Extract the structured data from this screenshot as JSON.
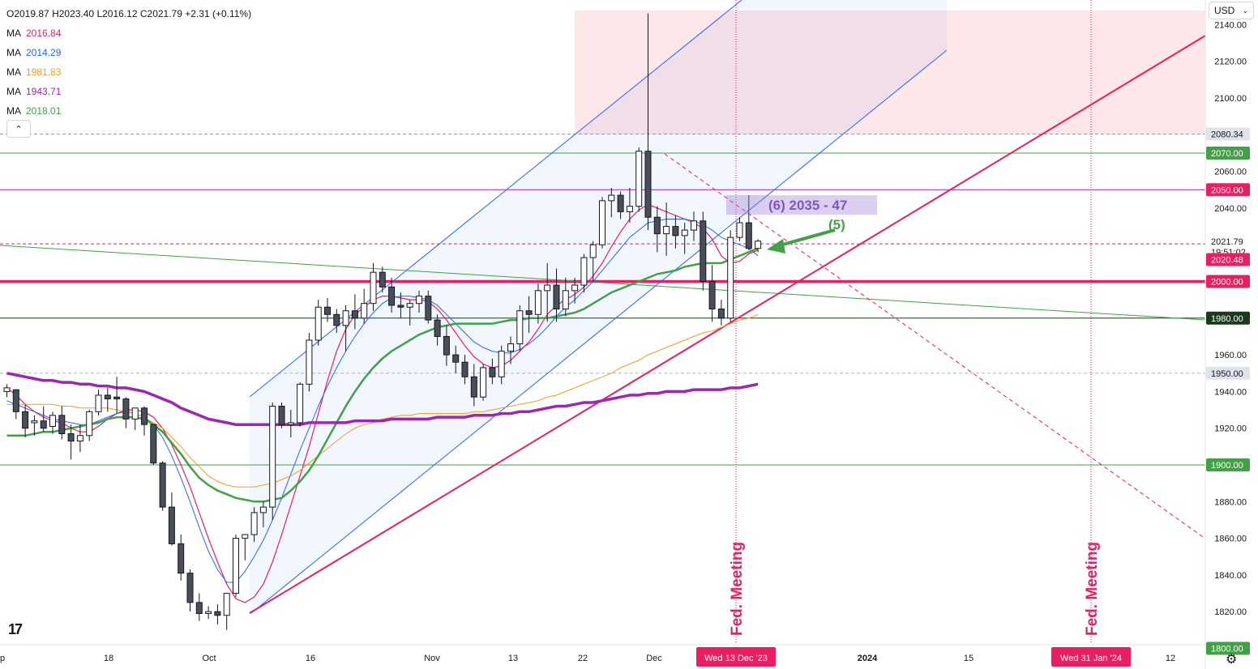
{
  "ohlc": {
    "o": "O2019.87",
    "h": "H2023.40",
    "l": "L2016.12",
    "c": "C2021.79",
    "chg": "+2.31 (+0.11%)"
  },
  "ma_label": "MA",
  "ma": [
    {
      "value": "2016.84",
      "color": "#e91e63"
    },
    {
      "value": "2014.29",
      "color": "#2962ff"
    },
    {
      "value": "1981.83",
      "color": "#f59c1a"
    },
    {
      "value": "1943.71",
      "color": "#9c27b0"
    },
    {
      "value": "2018.01",
      "color": "#43a047"
    }
  ],
  "currency": "USD",
  "settings_icon": "gear-icon",
  "collapse_icon": "chevron-up-icon",
  "chart_data": {
    "type": "candlestick",
    "yaxis_ticks": [
      "2140.00",
      "2120.00",
      "2100.00",
      "2080.00",
      "2060.00",
      "2040.00",
      "2020.00",
      "2000.00",
      "1980.00",
      "1960.00",
      "1940.00",
      "1920.00",
      "1900.00",
      "1880.00",
      "1860.00",
      "1840.00",
      "1820.00",
      "1800.00"
    ],
    "xaxis_ticks": [
      "p",
      "18",
      "Oct",
      "16",
      "Nov",
      "13",
      "22",
      "Dec",
      "2024",
      "15",
      "12"
    ],
    "x_highlight_labels": [
      "Wed 13 Dec '23",
      "Wed 31 Jan '24"
    ],
    "price_badges": [
      {
        "text": "2080.34",
        "price": 2080.34,
        "bg": "#e0e3eb",
        "fg": "#131722"
      },
      {
        "text": "2070.00",
        "price": 2070,
        "bg": "#43a047",
        "fg": "#ffffff"
      },
      {
        "text": "2050.00",
        "price": 2050,
        "bg": "#e91e63",
        "fg": "#ffffff"
      },
      {
        "text": "2021.79",
        "price": 2021.79,
        "bg": "#ffffff",
        "fg": "#131722"
      },
      {
        "text": "19:51:02",
        "price": 2016.2,
        "bg": "#ffffff",
        "fg": "#131722"
      },
      {
        "text": "2020.48",
        "price": 2011.9,
        "bg": "#e91e63",
        "fg": "#ffffff"
      },
      {
        "text": "2000.00",
        "price": 2000,
        "bg": "#e91e63",
        "fg": "#ffffff"
      },
      {
        "text": "1980.00",
        "price": 1980,
        "bg": "#1b3a1b",
        "fg": "#ffffff"
      },
      {
        "text": "1950.00",
        "price": 1950,
        "bg": "#e0e3eb",
        "fg": "#131722"
      },
      {
        "text": "1900.00",
        "price": 1900,
        "bg": "#43a047",
        "fg": "#ffffff"
      },
      {
        "text": "1800.00",
        "price": 1800,
        "bg": "#43a047",
        "fg": "#ffffff"
      }
    ],
    "level_labels": [
      {
        "text": "2081",
        "price": 2081,
        "color": "#9598a1"
      },
      {
        "text": "2070",
        "price": 2070,
        "color": "#43a047"
      },
      {
        "text": "2050",
        "price": 2050,
        "color": "#e91e63"
      },
      {
        "text": "2020",
        "price": 2020,
        "color": "#e91e63"
      },
      {
        "text": "2000",
        "price": 2000,
        "color": "#e91e63"
      },
      {
        "text": "1980",
        "price": 1980,
        "color": "#9598a1"
      },
      {
        "text": "1900",
        "price": 1900,
        "color": "#43a047"
      },
      {
        "text": "1800",
        "price": 1800,
        "color": "#43a047"
      }
    ],
    "annotations": {
      "wave6": "(6) 2035 - 47",
      "wave5": "(5)",
      "fed_meeting_1": "Fed. Meeting",
      "fed_meeting_2": "Fed. Meeting"
    },
    "candles": [
      [
        1940,
        1944,
        1937,
        1942
      ],
      [
        1941,
        1941,
        1925,
        1929
      ],
      [
        1929,
        1933,
        1915,
        1920
      ],
      [
        1923,
        1927,
        1916,
        1924
      ],
      [
        1924,
        1932,
        1918,
        1920
      ],
      [
        1921,
        1929,
        1917,
        1927
      ],
      [
        1927,
        1932,
        1914,
        1917
      ],
      [
        1917,
        1922,
        1903,
        1913
      ],
      [
        1913,
        1922,
        1907,
        1916
      ],
      [
        1916,
        1930,
        1913,
        1929
      ],
      [
        1929,
        1941,
        1927,
        1938
      ],
      [
        1938,
        1942,
        1929,
        1936
      ],
      [
        1937,
        1948,
        1928,
        1936
      ],
      [
        1936,
        1937,
        1920,
        1925
      ],
      [
        1925,
        1931,
        1919,
        1931
      ],
      [
        1931,
        1932,
        1916,
        1922
      ],
      [
        1922,
        1922,
        1900,
        1901
      ],
      [
        1901,
        1902,
        1875,
        1877
      ],
      [
        1877,
        1885,
        1856,
        1857
      ],
      [
        1857,
        1862,
        1837,
        1841
      ],
      [
        1841,
        1843,
        1820,
        1825
      ],
      [
        1825,
        1830,
        1815,
        1819
      ],
      [
        1819,
        1823,
        1816,
        1820
      ],
      [
        1820,
        1824,
        1813,
        1818
      ],
      [
        1818,
        1829,
        1810,
        1830
      ],
      [
        1830,
        1862,
        1828,
        1860
      ],
      [
        1860,
        1862,
        1848,
        1862
      ],
      [
        1862,
        1877,
        1858,
        1874
      ],
      [
        1874,
        1880,
        1866,
        1877
      ],
      [
        1877,
        1934,
        1870,
        1932
      ],
      [
        1932,
        1934,
        1920,
        1922
      ],
      [
        1922,
        1930,
        1915,
        1923
      ],
      [
        1923,
        1945,
        1921,
        1944
      ],
      [
        1944,
        1972,
        1940,
        1968
      ],
      [
        1968,
        1990,
        1965,
        1986
      ],
      [
        1986,
        1991,
        1978,
        1982
      ],
      [
        1982,
        1985,
        1972,
        1976
      ],
      [
        1976,
        1987,
        1962,
        1984
      ],
      [
        1984,
        1993,
        1974,
        1980
      ],
      [
        1980,
        1996,
        1977,
        1988
      ],
      [
        1988,
        2010,
        1984,
        2005
      ],
      [
        2005,
        2008,
        1994,
        1997
      ],
      [
        1997,
        2002,
        1983,
        1987
      ],
      [
        1987,
        1994,
        1980,
        1986
      ],
      [
        1986,
        1990,
        1976,
        1988
      ],
      [
        1988,
        1995,
        1983,
        1992
      ],
      [
        1992,
        1995,
        1977,
        1979
      ],
      [
        1979,
        1982,
        1965,
        1970
      ],
      [
        1970,
        1976,
        1954,
        1960
      ],
      [
        1960,
        1965,
        1950,
        1956
      ],
      [
        1956,
        1960,
        1944,
        1948
      ],
      [
        1948,
        1955,
        1932,
        1937
      ],
      [
        1937,
        1955,
        1935,
        1953
      ],
      [
        1953,
        1958,
        1944,
        1948
      ],
      [
        1948,
        1965,
        1944,
        1962
      ],
      [
        1962,
        1970,
        1955,
        1966
      ],
      [
        1966,
        1987,
        1962,
        1984
      ],
      [
        1984,
        1992,
        1972,
        1982
      ],
      [
        1982,
        1999,
        1977,
        1995
      ],
      [
        1995,
        2010,
        1978,
        1998
      ],
      [
        1998,
        2007,
        1978,
        1985
      ],
      [
        1985,
        2002,
        1981,
        1995
      ],
      [
        1995,
        2002,
        1988,
        1998
      ],
      [
        1998,
        2015,
        1994,
        2013
      ],
      [
        2013,
        2022,
        2000,
        2020
      ],
      [
        2020,
        2046,
        2018,
        2044
      ],
      [
        2044,
        2051,
        2035,
        2047
      ],
      [
        2047,
        2049,
        2034,
        2038
      ],
      [
        2038,
        2051,
        2032,
        2041
      ],
      [
        2041,
        2073,
        2038,
        2071
      ],
      [
        2071,
        2146,
        2028,
        2035
      ],
      [
        2035,
        2041,
        2016,
        2026
      ],
      [
        2026,
        2043,
        2014,
        2030
      ],
      [
        2030,
        2036,
        2018,
        2025
      ],
      [
        2025,
        2032,
        2015,
        2028
      ],
      [
        2028,
        2038,
        2022,
        2033
      ],
      [
        2033,
        2038,
        1995,
        2000
      ],
      [
        2000,
        2009,
        1978,
        1985
      ],
      [
        1985,
        1990,
        1976,
        1980
      ],
      [
        1980,
        2028,
        1978,
        2024
      ],
      [
        2024,
        2035,
        2022,
        2032
      ],
      [
        2032,
        2047,
        2017,
        2018
      ],
      [
        2018,
        2023,
        2016,
        2022
      ]
    ],
    "moving_averages": [
      {
        "name": "MA",
        "color": "#e91e63",
        "width": 1.2,
        "values": [
          1942,
          1938,
          1933,
          1929,
          1926,
          1924,
          1923,
          1920,
          1918,
          1918,
          1921,
          1925,
          1928,
          1930,
          1930,
          1929,
          1926,
          1920,
          1911,
          1900,
          1888,
          1874,
          1860,
          1847,
          1835,
          1827,
          1825,
          1828,
          1835,
          1847,
          1862,
          1878,
          1894,
          1910,
          1928,
          1946,
          1962,
          1974,
          1982,
          1986,
          1990,
          1992,
          1992,
          1991,
          1990,
          1990,
          1989,
          1985,
          1979,
          1972,
          1965,
          1959,
          1955,
          1953,
          1954,
          1957,
          1962,
          1967,
          1974,
          1982,
          1987,
          1990,
          1993,
          1997,
          2003,
          2010,
          2019,
          2027,
          2034,
          2039,
          2042,
          2040,
          2038,
          2036,
          2034,
          2032,
          2029,
          2023,
          2014,
          2010,
          2011,
          2015,
          2017
        ]
      },
      {
        "name": "MA",
        "color": "#2962ff",
        "width": 1,
        "values": [
          1935,
          1933,
          1931,
          1929,
          1927,
          1925,
          1924,
          1923,
          1922,
          1922,
          1924,
          1926,
          1928,
          1929,
          1928,
          1926,
          1922,
          1915,
          1905,
          1893,
          1880,
          1866,
          1853,
          1843,
          1836,
          1836,
          1842,
          1850,
          1859,
          1870,
          1882,
          1895,
          1908,
          1920,
          1932,
          1943,
          1953,
          1962,
          1970,
          1977,
          1983,
          1988,
          1991,
          1992,
          1992,
          1991,
          1990,
          1987,
          1982,
          1977,
          1972,
          1967,
          1964,
          1962,
          1961,
          1961,
          1963,
          1966,
          1970,
          1975,
          1981,
          1986,
          1990,
          1995,
          2000,
          2006,
          2012,
          2018,
          2024,
          2028,
          2032,
          2033,
          2034,
          2034,
          2034,
          2033,
          2031,
          2028,
          2024,
          2022,
          2020,
          2018,
          2014
        ]
      },
      {
        "name": "MA",
        "color": "#f59c1a",
        "width": 1,
        "values": [
          1933,
          1933,
          1933,
          1933,
          1933,
          1933,
          1932,
          1932,
          1931,
          1931,
          1931,
          1931,
          1930,
          1929,
          1928,
          1926,
          1923,
          1920,
          1915,
          1910,
          1904,
          1899,
          1894,
          1891,
          1889,
          1888,
          1888,
          1888,
          1889,
          1890,
          1892,
          1894,
          1897,
          1901,
          1905,
          1909,
          1913,
          1917,
          1920,
          1922,
          1923,
          1925,
          1926,
          1927,
          1927,
          1928,
          1928,
          1928,
          1928,
          1928,
          1928,
          1929,
          1929,
          1930,
          1931,
          1932,
          1933,
          1934,
          1935,
          1937,
          1938,
          1940,
          1942,
          1944,
          1946,
          1948,
          1950,
          1953,
          1955,
          1957,
          1960,
          1962,
          1964,
          1966,
          1968,
          1970,
          1972,
          1973,
          1975,
          1977,
          1979,
          1980,
          1982
        ]
      },
      {
        "name": "MA",
        "color": "#43a047",
        "width": 2.5,
        "values": [
          1916,
          1916,
          1916,
          1917,
          1918,
          1918,
          1919,
          1920,
          1921,
          1922,
          1923,
          1925,
          1926,
          1926,
          1926,
          1925,
          1922,
          1918,
          1912,
          1906,
          1899,
          1893,
          1889,
          1886,
          1884,
          1882,
          1881,
          1880,
          1880,
          1881,
          1882,
          1886,
          1891,
          1897,
          1905,
          1914,
          1923,
          1932,
          1940,
          1947,
          1953,
          1958,
          1962,
          1965,
          1968,
          1971,
          1973,
          1975,
          1976,
          1977,
          1977,
          1977,
          1977,
          1977,
          1978,
          1979,
          1979,
          1980,
          1980,
          1980,
          1981,
          1982,
          1983,
          1985,
          1988,
          1991,
          1994,
          1996,
          1998,
          2000,
          2002,
          2004,
          2005,
          2006,
          2008,
          2009,
          2010,
          2010,
          2010,
          2012,
          2014,
          2016,
          2018
        ]
      },
      {
        "name": "MA",
        "color": "#9c27b0",
        "width": 3.5,
        "values": [
          1950,
          1949,
          1948,
          1947,
          1946,
          1946,
          1945,
          1945,
          1944,
          1944,
          1943,
          1943,
          1942,
          1942,
          1941,
          1940,
          1938,
          1936,
          1934,
          1931,
          1929,
          1927,
          1925,
          1924,
          1923,
          1922,
          1922,
          1922,
          1922,
          1922,
          1922,
          1922,
          1922,
          1923,
          1923,
          1923,
          1923,
          1923,
          1924,
          1924,
          1924,
          1924,
          1925,
          1925,
          1925,
          1925,
          1925,
          1926,
          1926,
          1926,
          1926,
          1927,
          1927,
          1927,
          1928,
          1928,
          1929,
          1929,
          1930,
          1931,
          1932,
          1932,
          1933,
          1934,
          1934,
          1935,
          1936,
          1937,
          1938,
          1938,
          1939,
          1939,
          1940,
          1940,
          1940,
          1941,
          1941,
          1941,
          1941,
          1942,
          1942,
          1943,
          1944
        ]
      }
    ]
  }
}
